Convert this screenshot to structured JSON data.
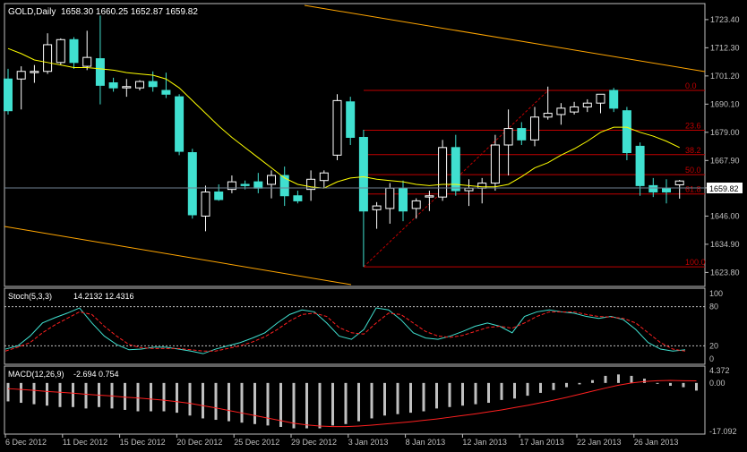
{
  "header": {
    "symbol_label": "GOLD,Daily",
    "ohlc": "1658.30 1660.25 1652.87 1659.82"
  },
  "colors": {
    "background": "#000000",
    "axis": "#c0c0c0",
    "candle_up": "#000000",
    "candle_up_border": "#ffffff",
    "candle_down": "#40e0d0",
    "fib": "#c00000",
    "ma": "#ffff00",
    "channel": "#ffa500",
    "stoch_main": "#40e0d0",
    "stoch_signal": "#ff2020",
    "macd_hist": "#c0c0c0",
    "macd_signal": "#ff2020"
  },
  "chart_data": [
    {
      "type": "candlestick",
      "title": "GOLD,Daily",
      "ohlc_label": "1658.30 1660.25 1652.87 1659.82",
      "current_price": "1659.82",
      "ylim": [
        1619,
        1729
      ],
      "y_ticks": [
        "1723.40",
        "1712.30",
        "1701.20",
        "1690.10",
        "1679.00",
        "1667.90",
        "1657.10",
        "1646.00",
        "1634.90",
        "1623.80"
      ],
      "x_ticks": [
        "6 Dec 2012",
        "11 Dec 2012",
        "15 Dec 2012",
        "20 Dec 2012",
        "25 Dec 2012",
        "29 Dec 2012",
        "3 Jan 2013",
        "8 Jan 2013",
        "12 Jan 2013",
        "17 Jan 2013",
        "22 Jan 2013",
        "26 Jan 2013"
      ],
      "candles": [
        {
          "o": 1700.0,
          "h": 1704.0,
          "l": 1686.0,
          "c": 1687.5
        },
        {
          "o": 1700.0,
          "h": 1705.0,
          "l": 1688.0,
          "c": 1703.0
        },
        {
          "o": 1702.5,
          "h": 1705.5,
          "l": 1698.5,
          "c": 1703.0
        },
        {
          "o": 1703.0,
          "h": 1718.0,
          "l": 1702.0,
          "c": 1713.5
        },
        {
          "o": 1706.5,
          "h": 1716.0,
          "l": 1705.5,
          "c": 1715.5
        },
        {
          "o": 1715.5,
          "h": 1716.5,
          "l": 1704.0,
          "c": 1706.5
        },
        {
          "o": 1705.0,
          "h": 1719.0,
          "l": 1703.5,
          "c": 1708.5
        },
        {
          "o": 1708.0,
          "h": 1725.0,
          "l": 1690.0,
          "c": 1697.5
        },
        {
          "o": 1698.5,
          "h": 1700.5,
          "l": 1695.0,
          "c": 1696.5
        },
        {
          "o": 1696.5,
          "h": 1700.0,
          "l": 1693.0,
          "c": 1697.0
        },
        {
          "o": 1696.5,
          "h": 1699.5,
          "l": 1695.5,
          "c": 1699.0
        },
        {
          "o": 1699.0,
          "h": 1703.0,
          "l": 1695.0,
          "c": 1697.0
        },
        {
          "o": 1695.5,
          "h": 1702.5,
          "l": 1692.5,
          "c": 1694.0
        },
        {
          "o": 1693.0,
          "h": 1694.0,
          "l": 1670.0,
          "c": 1671.5
        },
        {
          "o": 1671.0,
          "h": 1672.5,
          "l": 1645.0,
          "c": 1646.5
        },
        {
          "o": 1646.0,
          "h": 1658.0,
          "l": 1640.0,
          "c": 1655.5
        },
        {
          "o": 1655.5,
          "h": 1658.5,
          "l": 1652.0,
          "c": 1652.5
        },
        {
          "o": 1656.5,
          "h": 1662.0,
          "l": 1655.0,
          "c": 1659.5
        },
        {
          "o": 1658.5,
          "h": 1660.0,
          "l": 1656.5,
          "c": 1658.0
        },
        {
          "o": 1659.5,
          "h": 1663.0,
          "l": 1655.0,
          "c": 1657.0
        },
        {
          "o": 1658.5,
          "h": 1664.0,
          "l": 1653.0,
          "c": 1662.0
        },
        {
          "o": 1662.0,
          "h": 1665.5,
          "l": 1650.0,
          "c": 1654.0
        },
        {
          "o": 1654.0,
          "h": 1656.0,
          "l": 1651.0,
          "c": 1652.0
        },
        {
          "o": 1656.5,
          "h": 1664.0,
          "l": 1652.0,
          "c": 1660.5
        },
        {
          "o": 1660.0,
          "h": 1664.0,
          "l": 1657.0,
          "c": 1663.0
        },
        {
          "o": 1670.0,
          "h": 1694.0,
          "l": 1668.0,
          "c": 1691.5
        },
        {
          "o": 1691.0,
          "h": 1693.0,
          "l": 1674.0,
          "c": 1677.0
        },
        {
          "o": 1677.0,
          "h": 1680.0,
          "l": 1626.0,
          "c": 1648.0
        },
        {
          "o": 1648.5,
          "h": 1651.5,
          "l": 1641.0,
          "c": 1650.0
        },
        {
          "o": 1649.0,
          "h": 1659.0,
          "l": 1643.0,
          "c": 1657.0
        },
        {
          "o": 1657.0,
          "h": 1660.0,
          "l": 1644.0,
          "c": 1648.0
        },
        {
          "o": 1649.0,
          "h": 1653.0,
          "l": 1645.0,
          "c": 1652.0
        },
        {
          "o": 1653.5,
          "h": 1656.0,
          "l": 1648.0,
          "c": 1654.0
        },
        {
          "o": 1653.5,
          "h": 1676.0,
          "l": 1652.0,
          "c": 1673.0
        },
        {
          "o": 1673.0,
          "h": 1678.0,
          "l": 1654.0,
          "c": 1656.0
        },
        {
          "o": 1656.0,
          "h": 1660.5,
          "l": 1650.0,
          "c": 1657.0
        },
        {
          "o": 1657.0,
          "h": 1661.0,
          "l": 1651.0,
          "c": 1659.0
        },
        {
          "o": 1659.0,
          "h": 1678.0,
          "l": 1656.0,
          "c": 1674.0
        },
        {
          "o": 1674.0,
          "h": 1688.0,
          "l": 1662.0,
          "c": 1680.5
        },
        {
          "o": 1680.5,
          "h": 1683.0,
          "l": 1674.0,
          "c": 1676.0
        },
        {
          "o": 1676.0,
          "h": 1689.0,
          "l": 1673.5,
          "c": 1685.0
        },
        {
          "o": 1685.0,
          "h": 1697.0,
          "l": 1684.0,
          "c": 1686.5
        },
        {
          "o": 1686.0,
          "h": 1690.5,
          "l": 1682.0,
          "c": 1688.5
        },
        {
          "o": 1687.0,
          "h": 1691.0,
          "l": 1686.0,
          "c": 1689.0
        },
        {
          "o": 1689.0,
          "h": 1692.0,
          "l": 1687.0,
          "c": 1690.5
        },
        {
          "o": 1690.5,
          "h": 1693.5,
          "l": 1686.5,
          "c": 1694.0
        },
        {
          "o": 1695.5,
          "h": 1696.5,
          "l": 1687.0,
          "c": 1688.5
        },
        {
          "o": 1687.5,
          "h": 1689.0,
          "l": 1668.0,
          "c": 1671.0
        },
        {
          "o": 1673.5,
          "h": 1675.0,
          "l": 1654.0,
          "c": 1658.0
        },
        {
          "o": 1658.0,
          "h": 1661.0,
          "l": 1653.5,
          "c": 1655.5
        },
        {
          "o": 1657.0,
          "h": 1660.5,
          "l": 1651.0,
          "c": 1655.5
        },
        {
          "o": 1658.3,
          "h": 1660.25,
          "l": 1652.87,
          "c": 1659.82
        }
      ],
      "moving_average": [
        1712.0,
        1710.0,
        1707.5,
        1706.5,
        1705.5,
        1704.5,
        1704.5,
        1704.0,
        1703.5,
        1702.5,
        1702.0,
        1701.5,
        1700.0,
        1696.5,
        1691.5,
        1686.5,
        1681.5,
        1677.0,
        1673.0,
        1669.0,
        1665.0,
        1661.0,
        1658.5,
        1657.5,
        1657.0,
        1659.5,
        1661.0,
        1661.5,
        1660.5,
        1660.0,
        1659.5,
        1658.5,
        1658.0,
        1658.5,
        1658.5,
        1658.0,
        1657.5,
        1657.5,
        1658.5,
        1661.5,
        1665.0,
        1667.0,
        1670.0,
        1672.5,
        1675.5,
        1679.0,
        1681.0,
        1681.0,
        1679.0,
        1677.5,
        1675.5,
        1673.0
      ],
      "fibonacci": [
        {
          "level": "0.0",
          "price": 1695.5
        },
        {
          "level": "23.6",
          "price": 1679.8
        },
        {
          "level": "38.2",
          "price": 1670.2
        },
        {
          "level": "50.0",
          "price": 1662.3
        },
        {
          "level": "61.8",
          "price": 1654.7
        },
        {
          "level": "100.0",
          "price": 1626.0
        }
      ]
    },
    {
      "type": "line",
      "title": "Stoch(5,3,3)",
      "legend_values": "14.2132 12.4316",
      "ylim": [
        0,
        100
      ],
      "y_ticks": [
        "100",
        "80",
        "20",
        "0"
      ],
      "levels": [
        80,
        20
      ],
      "series": [
        {
          "name": "main",
          "values": [
            15,
            20,
            35,
            55,
            63,
            70,
            78,
            55,
            35,
            22,
            14,
            15,
            18,
            18,
            15,
            12,
            8,
            15,
            20,
            25,
            32,
            40,
            55,
            68,
            75,
            72,
            55,
            35,
            30,
            45,
            78,
            75,
            60,
            40,
            32,
            30,
            35,
            42,
            50,
            55,
            50,
            40,
            65,
            72,
            75,
            72,
            70,
            65,
            62,
            65,
            60,
            45,
            25,
            15,
            12,
            14
          ]
        },
        {
          "name": "signal",
          "values": [
            12,
            18,
            25,
            40,
            52,
            62,
            72,
            68,
            50,
            35,
            22,
            17,
            16,
            16,
            16,
            14,
            12,
            12,
            16,
            20,
            26,
            34,
            45,
            58,
            68,
            70,
            65,
            48,
            40,
            38,
            55,
            70,
            68,
            55,
            42,
            35,
            33,
            36,
            42,
            48,
            50,
            47,
            55,
            65,
            72,
            72,
            72,
            68,
            65,
            64,
            62,
            55,
            40,
            25,
            15,
            12
          ]
        }
      ]
    },
    {
      "type": "bar",
      "title": "MACD(12,26,9)",
      "legend_values": "-2.694 0.754",
      "ylim": [
        -17.092,
        4.372
      ],
      "y_ticks": [
        "4.372",
        "0.00",
        "-17.092"
      ],
      "series": [
        {
          "name": "histogram",
          "values": [
            -6.5,
            -7,
            -7.5,
            -8,
            -8.5,
            -8.5,
            -9,
            -8.5,
            -9,
            -9.5,
            -10,
            -10,
            -10,
            -10.5,
            -11.5,
            -12.5,
            -13,
            -13.5,
            -14,
            -14.5,
            -15,
            -15.5,
            -16,
            -16,
            -16,
            -15,
            -14.5,
            -13.5,
            -12.5,
            -11.5,
            -11,
            -10.5,
            -10,
            -9,
            -8.5,
            -8,
            -7.5,
            -7,
            -6,
            -5.5,
            -4.5,
            -3.5,
            -2.5,
            -1.5,
            -0.5,
            1,
            2.5,
            3,
            2.5,
            1.5,
            0,
            -1,
            -1.5,
            -2.7
          ]
        },
        {
          "name": "signal",
          "values": [
            -2,
            -2.3,
            -2.6,
            -3.0,
            -3.3,
            -3.6,
            -4.0,
            -4.3,
            -4.6,
            -5.0,
            -5.3,
            -5.7,
            -6.1,
            -6.6,
            -7.2,
            -8.0,
            -8.8,
            -9.7,
            -10.6,
            -11.5,
            -12.4,
            -13.3,
            -14.2,
            -14.8,
            -15.2,
            -15.4,
            -15.4,
            -15.2,
            -14.9,
            -14.5,
            -14.1,
            -13.7,
            -13.2,
            -12.7,
            -12.1,
            -11.5,
            -10.9,
            -10.2,
            -9.5,
            -8.7,
            -7.9,
            -7.0,
            -6.1,
            -5.1,
            -4.0,
            -2.9,
            -1.8,
            -0.8,
            0.0,
            0.5,
            0.8,
            0.9,
            0.8,
            0.754
          ]
        }
      ]
    }
  ]
}
